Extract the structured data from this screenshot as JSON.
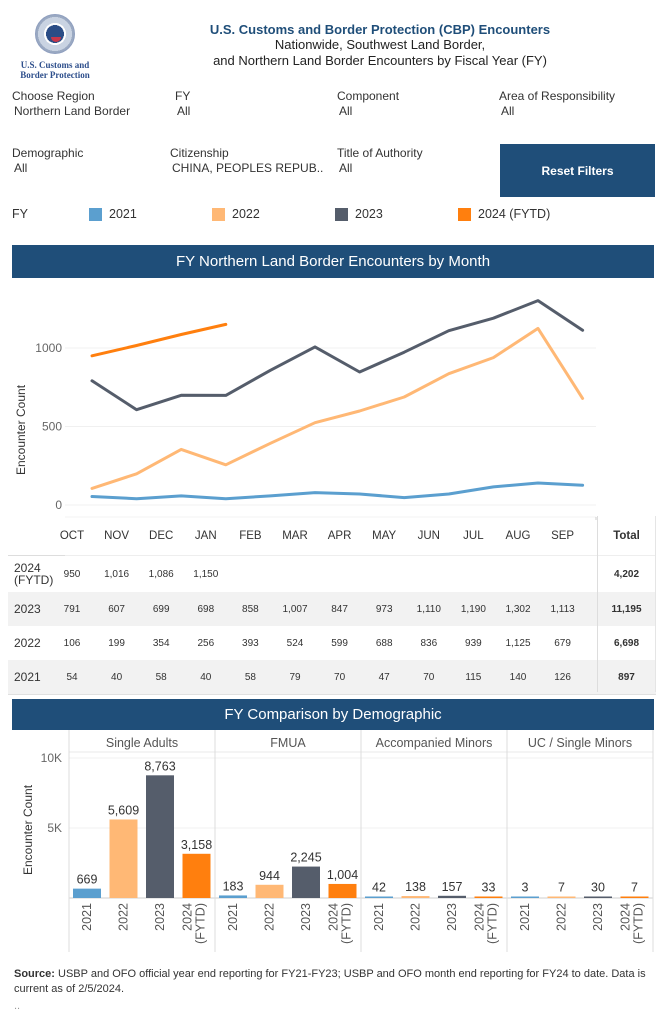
{
  "header": {
    "logo_text_line1": "U.S. Customs and",
    "logo_text_line2": "Border Protection",
    "title": "U.S. Customs and Border Protection (CBP) Encounters",
    "subtitle_line1": "Nationwide, Southwest Land Border,",
    "subtitle_line2": "and Northern Land Border Encounters by Fiscal Year (FY)"
  },
  "filters": [
    {
      "label": "Choose Region",
      "value": "Northern Land Border"
    },
    {
      "label": "FY",
      "value": "All"
    },
    {
      "label": "Component",
      "value": "All"
    },
    {
      "label": "Area of Responsibility",
      "value": "All"
    },
    {
      "label": "Demographic",
      "value": "All"
    },
    {
      "label": "Citizenship",
      "value": "CHINA, PEOPLES REPUB.."
    },
    {
      "label": "Title of Authority",
      "value": "All"
    }
  ],
  "reset_button": "Reset Filters",
  "legend": {
    "title": "FY",
    "items": [
      {
        "label": "2021",
        "color": "#5b9fcf"
      },
      {
        "label": "2022",
        "color": "#ffb875"
      },
      {
        "label": "2023",
        "color": "#555d6b"
      },
      {
        "label": "2024 (FYTD)",
        "color": "#ff7f0e"
      }
    ]
  },
  "monthly_section": {
    "title": "FY Northern Land Border Encounters by Month",
    "total_label": "Total",
    "row_labels": [
      "2024",
      "(FYTD)"
    ]
  },
  "demographic_section": {
    "title": "FY Comparison by Demographic"
  },
  "source": {
    "label": "Source:",
    "text": " USBP and OFO official year end reporting for FY21-FY23; USBP and OFO month end reporting for FY24 to date. Data is current as of 2/5/2024.",
    "trailing": ".."
  },
  "chart_data": [
    {
      "type": "line",
      "title": "FY Northern Land Border Encounters by Month",
      "xlabel": "",
      "ylabel": "Encounter Count",
      "x": [
        "OCT",
        "NOV",
        "DEC",
        "JAN",
        "FEB",
        "MAR",
        "APR",
        "MAY",
        "JUN",
        "JUL",
        "AUG",
        "SEP"
      ],
      "yticks": [
        0,
        500,
        1000
      ],
      "ylim": [
        0,
        1350
      ],
      "grid": true,
      "series": [
        {
          "name": "2024 (FYTD)",
          "color": "#ff7f0e",
          "values": [
            950,
            1016,
            1086,
            1150,
            null,
            null,
            null,
            null,
            null,
            null,
            null,
            null
          ],
          "total": "4,202",
          "labels": [
            "950",
            "1,016",
            "1,086",
            "1,150",
            "",
            "",
            "",
            "",
            "",
            "",
            "",
            ""
          ]
        },
        {
          "name": "2023",
          "color": "#555d6b",
          "values": [
            791,
            607,
            699,
            698,
            858,
            1007,
            847,
            973,
            1110,
            1190,
            1302,
            1113
          ],
          "total": "11,195",
          "labels": [
            "791",
            "607",
            "699",
            "698",
            "858",
            "1,007",
            "847",
            "973",
            "1,110",
            "1,190",
            "1,302",
            "1,113"
          ]
        },
        {
          "name": "2022",
          "color": "#ffb875",
          "values": [
            106,
            199,
            354,
            256,
            393,
            524,
            599,
            688,
            836,
            939,
            1125,
            679
          ],
          "total": "6,698",
          "labels": [
            "106",
            "199",
            "354",
            "256",
            "393",
            "524",
            "599",
            "688",
            "836",
            "939",
            "1,125",
            "679"
          ]
        },
        {
          "name": "2021",
          "color": "#5b9fcf",
          "values": [
            54,
            40,
            58,
            40,
            58,
            79,
            70,
            47,
            70,
            115,
            140,
            126
          ],
          "total": "897",
          "labels": [
            "54",
            "40",
            "58",
            "40",
            "58",
            "79",
            "70",
            "47",
            "70",
            "115",
            "140",
            "126"
          ]
        }
      ]
    },
    {
      "type": "bar",
      "title": "FY Comparison by Demographic",
      "ylabel": "Encounter Count",
      "yticks": [
        {
          "value": 5000,
          "label": "5K"
        },
        {
          "value": 10000,
          "label": "10K"
        }
      ],
      "ylim": [
        0,
        10000
      ],
      "grid": true,
      "categories": [
        "2021",
        "2022",
        "2023",
        "2024 (FYTD)"
      ],
      "category_lines": [
        [
          "2021"
        ],
        [
          "2022"
        ],
        [
          "2023"
        ],
        [
          "2024",
          "(FYTD)"
        ]
      ],
      "colors": [
        "#5b9fcf",
        "#ffb875",
        "#555d6b",
        "#ff7f0e"
      ],
      "panels": [
        {
          "name": "Single Adults",
          "values": [
            669,
            5609,
            8763,
            3158
          ],
          "labels": [
            "669",
            "5,609",
            "8,763",
            "3,158"
          ]
        },
        {
          "name": "FMUA",
          "values": [
            183,
            944,
            2245,
            1004
          ],
          "labels": [
            "183",
            "944",
            "2,245",
            "1,004"
          ]
        },
        {
          "name": "Accompanied Minors",
          "values": [
            42,
            138,
            157,
            33
          ],
          "labels": [
            "42",
            "138",
            "157",
            "33"
          ]
        },
        {
          "name": "UC / Single Minors",
          "values": [
            3,
            7,
            30,
            7
          ],
          "labels": [
            "3",
            "7",
            "30",
            "7"
          ]
        }
      ]
    }
  ]
}
